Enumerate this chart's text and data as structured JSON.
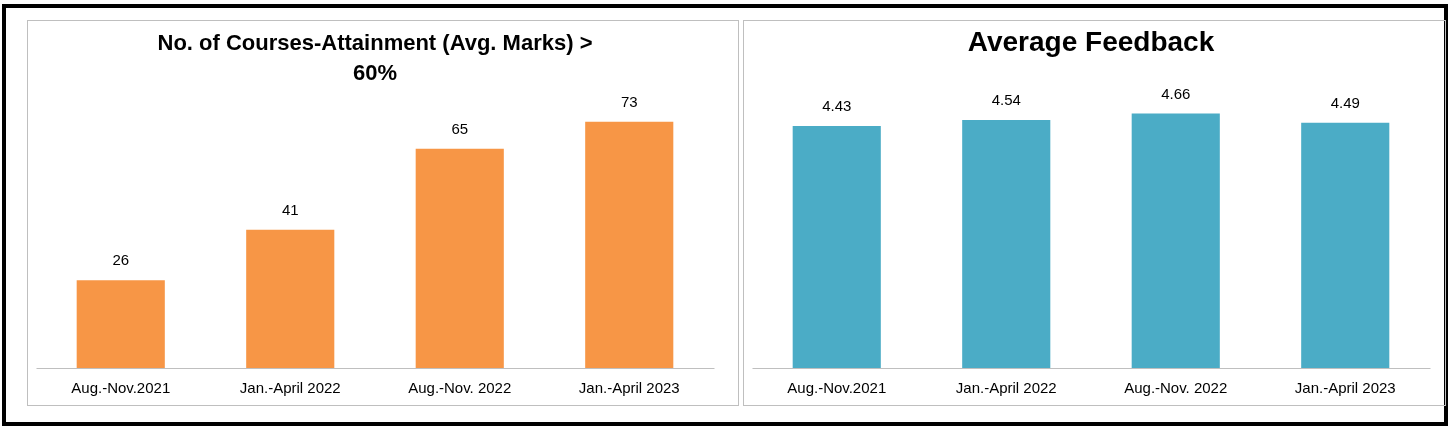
{
  "chart_data": [
    {
      "type": "bar",
      "title": "No. of Courses-Attainment  (Avg. Marks) > 60%",
      "categories": [
        "Aug.-Nov.2021",
        "Jan.-April 2022",
        "Aug.-Nov. 2022",
        "Jan.-April 2023"
      ],
      "values": [
        26,
        41,
        65,
        73
      ],
      "color": "#f79646",
      "data_labels": true,
      "tick_labels": "x",
      "grid": false
    },
    {
      "type": "bar",
      "title": "Average Feedback",
      "categories": [
        "Aug.-Nov.2021",
        "Jan.-April 2022",
        "Aug.-Nov. 2022",
        "Jan.-April 2023"
      ],
      "values": [
        4.43,
        4.54,
        4.66,
        4.49
      ],
      "color": "#4bacc6",
      "data_labels": true,
      "tick_labels": "x",
      "grid": false
    }
  ]
}
